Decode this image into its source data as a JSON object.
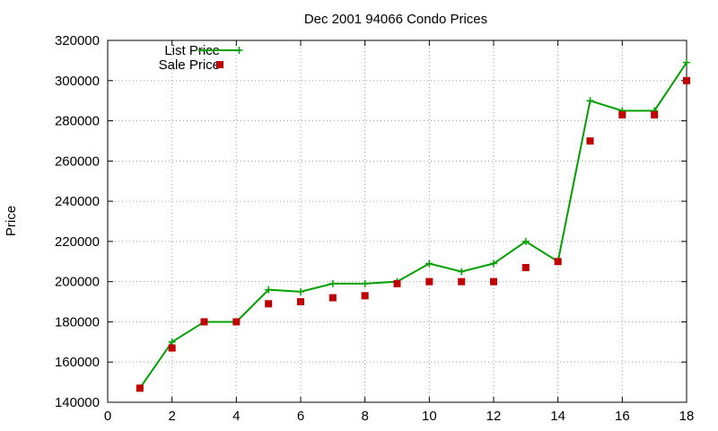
{
  "chart_data": {
    "type": "line",
    "title": "Dec 2001 94066 Condo Prices",
    "xlabel": "",
    "ylabel": "Price",
    "xlim": [
      0,
      18
    ],
    "ylim": [
      140000,
      320000
    ],
    "xticks": [
      0,
      2,
      4,
      6,
      8,
      10,
      12,
      14,
      16,
      18
    ],
    "yticks": [
      140000,
      160000,
      180000,
      200000,
      220000,
      240000,
      260000,
      280000,
      300000,
      320000
    ],
    "grid": true,
    "legend_position": "top-left",
    "series": [
      {
        "name": "List Price",
        "style": "line-with-plus-markers",
        "color": "#00a000",
        "x": [
          1,
          2,
          3,
          4,
          5,
          6,
          7,
          8,
          9,
          10,
          11,
          12,
          13,
          14,
          15,
          16,
          17,
          18
        ],
        "y": [
          147000,
          170000,
          180000,
          180000,
          196000,
          195000,
          199000,
          199000,
          200000,
          209000,
          205000,
          209000,
          220000,
          210000,
          290000,
          285000,
          285000,
          309000
        ]
      },
      {
        "name": "Sale Price",
        "style": "square-markers",
        "color": "#c00000",
        "x": [
          1,
          2,
          3,
          4,
          5,
          6,
          7,
          8,
          9,
          10,
          11,
          12,
          13,
          14,
          15,
          16,
          17,
          18
        ],
        "y": [
          147000,
          167000,
          180000,
          180000,
          189000,
          190000,
          192000,
          193000,
          199000,
          200000,
          200000,
          200000,
          207000,
          210000,
          270000,
          283000,
          283000,
          300000
        ]
      }
    ]
  }
}
